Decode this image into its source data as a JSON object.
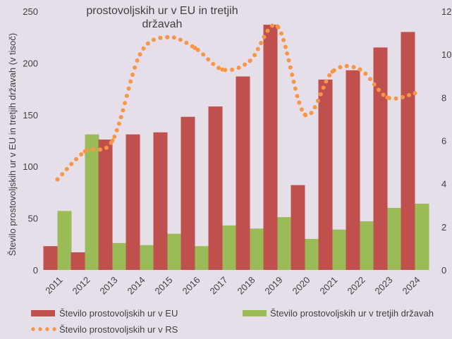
{
  "chart_data": {
    "type": "bar",
    "title_lines": [
      "prostovoljskih ur v EU in tretjih",
      "državah"
    ],
    "ylabel": "Število prostovoljskih ur v EU in tretjih državah (v tisoč)",
    "categories": [
      "2011",
      "2012",
      "2013",
      "2014",
      "2015",
      "2016",
      "2017",
      "2018",
      "2019",
      "2020",
      "2021",
      "2022",
      "2023",
      "2024"
    ],
    "ylim": [
      0,
      250
    ],
    "yticks": [
      "0",
      "50",
      "100",
      "150",
      "200",
      "250"
    ],
    "right_ticks": [
      "0",
      "2",
      "4",
      "6",
      "8",
      "10",
      "12"
    ],
    "series": [
      {
        "name": "Število prostovoljskih ur v EU",
        "type": "bar",
        "color": "#c0504d",
        "values": [
          23,
          17,
          126,
          131,
          133,
          148,
          158,
          187,
          237,
          82,
          184,
          193,
          215,
          230
        ]
      },
      {
        "name": "Število prostovoljskih ur v tretjih državah",
        "type": "bar",
        "color": "#9bbb59",
        "values": [
          57,
          131,
          26,
          24,
          35,
          23,
          43,
          40,
          51,
          30,
          39,
          47,
          60,
          64
        ]
      },
      {
        "name": "Število prostovoljskih ur v RS",
        "type": "dotted-line",
        "color": "#f79646",
        "values": [
          4.2,
          5.5,
          6.0,
          10.0,
          10.8,
          10.3,
          9.3,
          9.7,
          11.3,
          7.2,
          9.2,
          9.3,
          8.0,
          8.2
        ]
      }
    ],
    "legend_position": "bottom"
  }
}
